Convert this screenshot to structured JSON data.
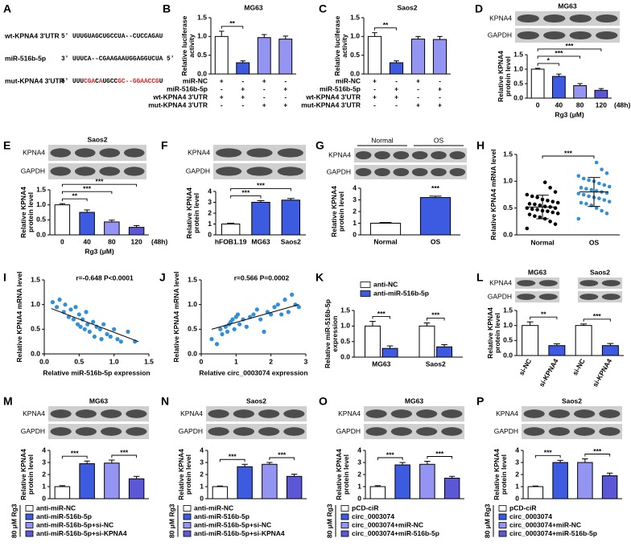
{
  "sequences": {
    "label": "A",
    "rows": [
      {
        "name": "wt-KPNA4 3'UTR",
        "segments": [
          {
            "text": "5' UUUGUAGCUGCCUA--CUCCAGAU",
            "color": "#000000"
          }
        ]
      },
      {
        "name": "miR-516b-5p",
        "segments": [
          {
            "text": "3' UUUCA--CGAAGAAUGGAGGUCUA 5'",
            "color": "#000000"
          }
        ]
      },
      {
        "name": "mut-KPNA4 3'UTR",
        "segments": [
          {
            "text": "5' UUU",
            "color": "#000000"
          },
          {
            "text": "CGA",
            "color": "#e02020"
          },
          {
            "text": "C",
            "color": "#000000"
          },
          {
            "text": "A",
            "color": "#e02020"
          },
          {
            "text": "UGCC",
            "color": "#000000"
          },
          {
            "text": "GC--GGAACCG",
            "color": "#e02020"
          },
          {
            "text": "U",
            "color": "#000000"
          }
        ]
      }
    ]
  },
  "chart_data": [
    {
      "type": "bar",
      "label": "B",
      "title": "MG63",
      "ylabel": "Relative luciferase activity",
      "ylim": [
        0,
        1.5
      ],
      "yticks": [
        {
          "value": 0,
          "label": "0.0"
        },
        0.5,
        {
          "value": 1,
          "label": "1.0"
        },
        1.5
      ],
      "values": [
        1.0,
        0.3,
        0.97,
        0.93
      ],
      "errors": [
        0.14,
        0.05,
        0.08,
        0.08
      ],
      "colors": [
        "#ffffff",
        "#3d5be0",
        "#9494f2",
        "#9494f2"
      ],
      "conditions": [
        {
          "name": "miR-NC",
          "signs": [
            "+",
            "-",
            "+",
            "-"
          ]
        },
        {
          "name": "miR-516b-5p",
          "signs": [
            "-",
            "+",
            "-",
            "+"
          ]
        },
        {
          "name": "wt-KPNA4 3'UTR",
          "signs": [
            "+",
            "+",
            "-",
            "-"
          ]
        },
        {
          "name": "mut-KPNA4 3'UTR",
          "signs": [
            "-",
            "-",
            "+",
            "+"
          ]
        }
      ],
      "sig": [
        {
          "between": [
            0,
            1
          ],
          "label": "**"
        }
      ]
    },
    {
      "type": "bar",
      "label": "C",
      "title": "Saos2",
      "ylabel": "Relative luciferase activity",
      "ylim": [
        0,
        1.5
      ],
      "yticks": [
        {
          "value": 0,
          "label": "0.0"
        },
        0.5,
        {
          "value": 1,
          "label": "1.0"
        },
        1.5
      ],
      "values": [
        1.0,
        0.3,
        0.93,
        0.92
      ],
      "errors": [
        0.1,
        0.05,
        0.07,
        0.08
      ],
      "colors": [
        "#ffffff",
        "#3d5be0",
        "#9494f2",
        "#9494f2"
      ],
      "conditions": [
        {
          "name": "miR-NC",
          "signs": [
            "+",
            "-",
            "+",
            "-"
          ]
        },
        {
          "name": "miR-516b-5p",
          "signs": [
            "-",
            "+",
            "-",
            "+"
          ]
        },
        {
          "name": "wt-KPNA4 3'UTR",
          "signs": [
            "+",
            "+",
            "-",
            "-"
          ]
        },
        {
          "name": "mut-KPNA4 3'UTR",
          "signs": [
            "-",
            "-",
            "+",
            "+"
          ]
        }
      ],
      "sig": [
        {
          "between": [
            0,
            1
          ],
          "label": "**"
        }
      ]
    },
    {
      "type": "bar",
      "label": "D",
      "blots": [
        {
          "title": "MG63",
          "rows": [
            "KPNA4",
            "GAPDH"
          ]
        }
      ],
      "ylabel": "Relative KPNA4 protein level",
      "xlabel": "Rg3 (μM)",
      "xnote": "(48h)",
      "ylim": [
        0,
        1.5
      ],
      "yticks": [
        {
          "value": 0,
          "label": "0.0"
        },
        0.5,
        {
          "value": 1,
          "label": "1.0"
        },
        1.5
      ],
      "categories": [
        "0",
        "40",
        "80",
        "120"
      ],
      "values": [
        1.0,
        0.75,
        0.43,
        0.27
      ],
      "errors": [
        0.03,
        0.08,
        0.07,
        0.06
      ],
      "colors": [
        "#ffffff",
        "#3d5be0",
        "#9494f2",
        "#5b57d6"
      ],
      "sig": [
        {
          "between": [
            0,
            1
          ],
          "label": "*"
        },
        {
          "between": [
            0,
            2
          ],
          "label": "***"
        },
        {
          "between": [
            0,
            3
          ],
          "label": "***"
        }
      ]
    },
    {
      "type": "bar",
      "label": "E",
      "blots": [
        {
          "title": "Saos2",
          "rows": [
            "KPNA4",
            "GAPDH"
          ]
        }
      ],
      "ylabel": "Relative KPNA4 protein level",
      "xlabel": "Rg3 (μM)",
      "xnote": "(48h)",
      "ylim": [
        0,
        1.5
      ],
      "yticks": [
        {
          "value": 0,
          "label": "0.0"
        },
        0.5,
        {
          "value": 1,
          "label": "1.0"
        },
        1.5
      ],
      "categories": [
        "0",
        "40",
        "80",
        "120"
      ],
      "values": [
        1.0,
        0.75,
        0.43,
        0.25
      ],
      "errors": [
        0.04,
        0.08,
        0.06,
        0.06
      ],
      "colors": [
        "#ffffff",
        "#3d5be0",
        "#9494f2",
        "#5b57d6"
      ],
      "sig": [
        {
          "between": [
            0,
            1
          ],
          "label": "**"
        },
        {
          "between": [
            0,
            2
          ],
          "label": "***"
        },
        {
          "between": [
            0,
            3
          ],
          "label": "***"
        }
      ]
    },
    {
      "type": "bar",
      "label": "F",
      "blots": [
        {
          "rows": [
            "KPNA4",
            "GAPDH"
          ]
        }
      ],
      "ylabel": "Relative KPNA4 protein level",
      "ylim": [
        0,
        4
      ],
      "yticks": [
        0,
        1,
        2,
        3,
        4
      ],
      "categories": [
        "hFOB1.19",
        "MG63",
        "Saos2"
      ],
      "values": [
        1.0,
        3.0,
        3.2
      ],
      "errors": [
        0.08,
        0.15,
        0.15
      ],
      "colors": [
        "#ffffff",
        "#3d5be0",
        "#3d5be0"
      ],
      "sig": [
        {
          "between": [
            0,
            1
          ],
          "label": "***"
        },
        {
          "between": [
            0,
            2
          ],
          "label": "***"
        }
      ]
    },
    {
      "type": "bar",
      "label": "G",
      "blots": [
        {
          "groups": [
            "Normal",
            "OS"
          ],
          "rows": [
            "KPNA4",
            "GAPDH"
          ]
        }
      ],
      "ylabel": "Relative KPNA4 protein level",
      "ylim": [
        0,
        4
      ],
      "yticks": [
        0,
        1,
        2,
        3,
        4
      ],
      "categories": [
        "Normal",
        "OS"
      ],
      "values": [
        1.0,
        3.2
      ],
      "errors": [
        0.06,
        0.12
      ],
      "colors": [
        "#ffffff",
        "#3d5be0"
      ],
      "sig": [
        {
          "between": [
            1,
            1
          ],
          "label": "***"
        }
      ]
    },
    {
      "type": "strip",
      "label": "H",
      "ylabel": "Relative KPNA4 mRNA level",
      "ylim": [
        0,
        1.5
      ],
      "yticks": [
        {
          "value": 0,
          "label": "0.0"
        },
        0.5,
        {
          "value": 1,
          "label": "1.0"
        },
        1.5
      ],
      "categories": [
        "Normal",
        "OS"
      ],
      "colors": [
        "#000000",
        "#2f8fd8"
      ],
      "values": [
        [
          0.12,
          0.2,
          0.25,
          0.3,
          0.33,
          0.35,
          0.38,
          0.4,
          0.42,
          0.44,
          0.45,
          0.47,
          0.48,
          0.5,
          0.5,
          0.52,
          0.53,
          0.55,
          0.57,
          0.58,
          0.6,
          0.62,
          0.64,
          0.66,
          0.7,
          0.72,
          0.75,
          0.8,
          0.88,
          0.98
        ],
        [
          0.3,
          0.4,
          0.45,
          0.5,
          0.55,
          0.58,
          0.6,
          0.62,
          0.65,
          0.68,
          0.7,
          0.72,
          0.75,
          0.77,
          0.78,
          0.8,
          0.82,
          0.84,
          0.86,
          0.88,
          0.9,
          0.93,
          0.96,
          1.0,
          1.02,
          1.05,
          1.1,
          1.15,
          1.22,
          1.35
        ]
      ],
      "means": [
        0.52,
        0.8
      ],
      "sds": [
        0.22,
        0.27
      ],
      "sig": [
        {
          "between": [
            0,
            1
          ],
          "label": "***"
        }
      ]
    },
    {
      "type": "scatter",
      "label": "I",
      "annotation": "r=-0.648  P<0.0001",
      "xlabel": "Relative miR-516b-5p expression",
      "ylabel": "Relative KPNA4 mRNA level",
      "color": "#2f8fd8",
      "xlim": [
        0,
        1.5
      ],
      "xticks": [
        {
          "value": 0,
          "label": "0.0"
        },
        0.5,
        {
          "value": 1,
          "label": "1.0"
        },
        1.5
      ],
      "ylim": [
        0,
        1.5
      ],
      "yticks": [
        {
          "value": 0,
          "label": "0.0"
        },
        0.5,
        {
          "value": 1,
          "label": "1.0"
        },
        1.5
      ],
      "x": [
        0.12,
        0.18,
        0.22,
        0.28,
        0.3,
        0.35,
        0.38,
        0.42,
        0.45,
        0.48,
        0.5,
        0.52,
        0.55,
        0.58,
        0.6,
        0.62,
        0.65,
        0.7,
        0.72,
        0.75,
        0.8,
        0.82,
        0.85,
        0.9,
        0.95,
        1.0,
        1.05,
        1.1,
        1.2,
        1.3
      ],
      "y": [
        1.05,
        0.95,
        1.1,
        0.85,
        1.0,
        0.75,
        0.9,
        0.7,
        0.95,
        0.6,
        0.8,
        0.55,
        0.7,
        0.5,
        0.85,
        0.6,
        0.45,
        0.65,
        0.35,
        0.55,
        0.5,
        0.3,
        0.6,
        0.4,
        0.35,
        0.5,
        0.3,
        0.25,
        0.45,
        0.25
      ],
      "fit": {
        "x": [
          0.1,
          1.35
        ],
        "y": [
          0.92,
          0.25
        ]
      }
    },
    {
      "type": "scatter",
      "label": "J",
      "annotation": "r=0.566  P=0.0002",
      "xlabel": "Relative circ_0003074 expression",
      "ylabel": "Relative KPNA4 mRNA level",
      "color": "#2f8fd8",
      "xlim": [
        0,
        3
      ],
      "xticks": [
        0,
        1,
        2,
        3
      ],
      "ylim": [
        0,
        1.5
      ],
      "yticks": [
        {
          "value": 0,
          "label": "0.0"
        },
        0.5,
        {
          "value": 1,
          "label": "1.0"
        },
        1.5
      ],
      "x": [
        0.3,
        0.45,
        0.55,
        0.6,
        0.7,
        0.75,
        0.8,
        0.85,
        0.9,
        0.95,
        1.0,
        1.05,
        1.1,
        1.2,
        1.3,
        1.4,
        1.5,
        1.6,
        1.7,
        1.8,
        1.9,
        2.0,
        2.1,
        2.2,
        2.3,
        2.4,
        2.5,
        2.6,
        2.7,
        2.8
      ],
      "y": [
        0.3,
        0.2,
        0.5,
        0.4,
        0.55,
        0.45,
        0.6,
        0.65,
        0.7,
        0.5,
        0.75,
        0.8,
        0.6,
        0.7,
        0.55,
        0.75,
        0.8,
        0.9,
        0.7,
        0.45,
        0.85,
        0.8,
        0.95,
        1.0,
        0.8,
        1.1,
        0.85,
        1.2,
        1.0,
        0.95
      ],
      "fit": {
        "x": [
          0.3,
          2.8
        ],
        "y": [
          0.5,
          1.0
        ]
      }
    },
    {
      "type": "grouped_bar",
      "label": "K",
      "ylabel": "Relative miR-516b-5p expression",
      "ylim": [
        0,
        1.5
      ],
      "yticks": [
        {
          "value": 0,
          "label": "0.0"
        },
        0.5,
        {
          "value": 1,
          "label": "1.0"
        },
        1.5
      ],
      "categories": [
        "MG63",
        "Saos2"
      ],
      "series": [
        {
          "name": "anti-NC",
          "color": "#ffffff",
          "values": [
            1.0,
            1.0
          ],
          "errors": [
            0.15,
            0.1
          ]
        },
        {
          "name": "anti-miR-516b-5p",
          "color": "#3d5be0",
          "values": [
            0.28,
            0.33
          ],
          "errors": [
            0.08,
            0.07
          ]
        }
      ],
      "sig": [
        {
          "between": [
            0,
            1
          ],
          "label": "***"
        },
        {
          "between": [
            2,
            3
          ],
          "label": "***"
        }
      ]
    },
    {
      "type": "bar",
      "label": "L",
      "blots": [
        {
          "title": "MG63",
          "rows": [
            "KPNA4",
            "GAPDH"
          ]
        },
        {
          "title": "Saos2"
        }
      ],
      "ylabel": "Relative KPNA4 protein level",
      "ylim": [
        0,
        1.5
      ],
      "yticks": [
        {
          "value": 0,
          "label": "0.0"
        },
        0.5,
        {
          "value": 1,
          "label": "1.0"
        },
        1.5
      ],
      "categories": [
        "si-NC",
        "si-KPNA4",
        "si-NC",
        "si-KPNA4"
      ],
      "values": [
        1.0,
        0.33,
        1.0,
        0.33
      ],
      "errors": [
        0.12,
        0.06,
        0.05,
        0.07
      ],
      "colors": [
        "#ffffff",
        "#3d5be0",
        "#ffffff",
        "#3d5be0"
      ],
      "sig": [
        {
          "between": [
            0,
            1
          ],
          "label": "**"
        },
        {
          "between": [
            2,
            3
          ],
          "label": "***"
        }
      ]
    },
    {
      "type": "bar",
      "label": "M",
      "blots": [
        {
          "title": "MG63",
          "rows": [
            "KPNA4",
            "GAPDH"
          ]
        }
      ],
      "ylabel": "Relative KPNA4 protein level",
      "ylim": [
        0,
        4
      ],
      "yticks": [
        0,
        1,
        2,
        3,
        4
      ],
      "values": [
        1.0,
        2.9,
        2.95,
        1.65
      ],
      "errors": [
        0.08,
        0.22,
        0.25,
        0.2
      ],
      "colors": [
        "#ffffff",
        "#3d5be0",
        "#9494f2",
        "#5b57d6"
      ],
      "side_label": "80 μM Rg3",
      "legend": [
        "anti-miR-NC",
        "anti-miR-516b-5p",
        "anti-miR-516b-5p+si-NC",
        "anti-miR-516b-5p+si-KPNA4"
      ],
      "sig": [
        {
          "between": [
            0,
            1
          ],
          "label": "***"
        },
        {
          "between": [
            2,
            3
          ],
          "label": "***"
        }
      ]
    },
    {
      "type": "bar",
      "label": "N",
      "blots": [
        {
          "title": "Saos2",
          "rows": [
            "KPNA4",
            "GAPDH"
          ]
        }
      ],
      "ylabel": "Relative KPNA4 protein level",
      "ylim": [
        0,
        4
      ],
      "yticks": [
        0,
        1,
        2,
        3,
        4
      ],
      "values": [
        1.0,
        2.65,
        2.85,
        1.85
      ],
      "errors": [
        0.05,
        0.2,
        0.15,
        0.18
      ],
      "colors": [
        "#ffffff",
        "#3d5be0",
        "#9494f2",
        "#5b57d6"
      ],
      "side_label": "80 μM Rg3",
      "legend": [
        "anti-miR-NC",
        "anti-miR-516b-5p",
        "anti-miR-516b-5p+si-NC",
        "anti-miR-516b-5p+si-KPNA4"
      ],
      "sig": [
        {
          "between": [
            0,
            1
          ],
          "label": "***"
        },
        {
          "between": [
            2,
            3
          ],
          "label": "***"
        }
      ]
    },
    {
      "type": "bar",
      "label": "O",
      "blots": [
        {
          "title": "MG63",
          "rows": [
            "KPNA4",
            "GAPDH"
          ]
        }
      ],
      "ylabel": "Relative KPNA4 protein level",
      "ylim": [
        0,
        4
      ],
      "yticks": [
        0,
        1,
        2,
        3,
        4
      ],
      "values": [
        1.0,
        2.8,
        2.85,
        1.7
      ],
      "errors": [
        0.08,
        0.2,
        0.25,
        0.15
      ],
      "colors": [
        "#ffffff",
        "#3d5be0",
        "#9494f2",
        "#5b57d6"
      ],
      "side_label": "80 μM Rg3",
      "legend": [
        "pCD-ciR",
        "circ_0003074",
        "circ_0003074+miR-NC",
        "circ_0003074+miR-516b-5p"
      ],
      "sig": [
        {
          "between": [
            0,
            1
          ],
          "label": "***"
        },
        {
          "between": [
            2,
            3
          ],
          "label": "***"
        }
      ]
    },
    {
      "type": "bar",
      "label": "P",
      "blots": [
        {
          "title": "Saos2",
          "rows": [
            "KPNA4",
            "GAPDH"
          ]
        }
      ],
      "ylabel": "Relative KPNA4 protein level",
      "ylim": [
        0,
        4
      ],
      "yticks": [
        0,
        1,
        2,
        3,
        4
      ],
      "values": [
        1.0,
        3.0,
        3.0,
        1.9
      ],
      "errors": [
        0.05,
        0.18,
        0.3,
        0.22
      ],
      "colors": [
        "#ffffff",
        "#3d5be0",
        "#9494f2",
        "#5b57d6"
      ],
      "side_label": "80 μM Rg3",
      "legend": [
        "pCD-ciR",
        "circ_0003074",
        "circ_0003074+miR-NC",
        "circ_0003074+miR-516b-5p"
      ],
      "sig": [
        {
          "between": [
            0,
            1
          ],
          "label": "***"
        },
        {
          "between": [
            2,
            3
          ],
          "label": "***"
        }
      ]
    }
  ]
}
